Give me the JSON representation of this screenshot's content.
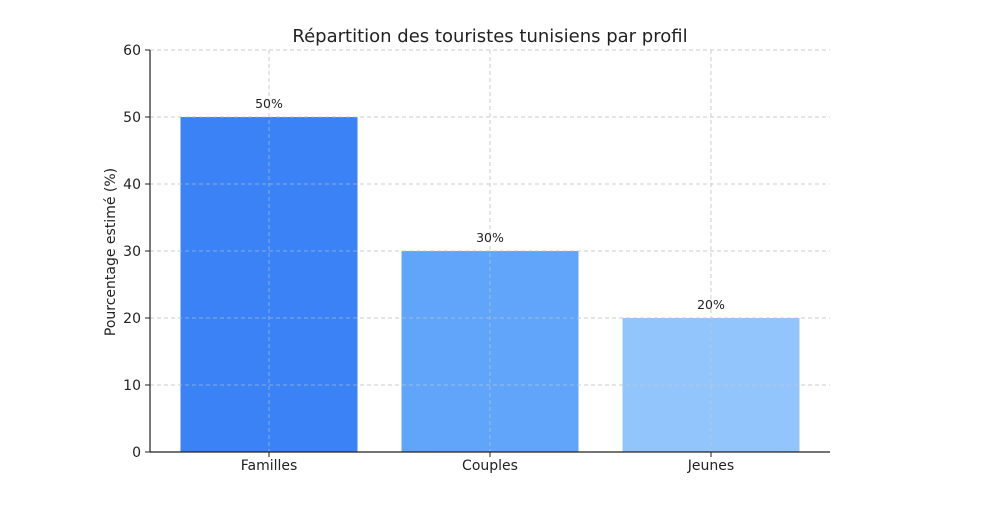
{
  "chart_data": {
    "type": "bar",
    "title": "Répartition des touristes tunisiens par profil",
    "xlabel": "",
    "ylabel": "Pourcentage estimé (%)",
    "categories": [
      "Familles",
      "Couples",
      "Jeunes"
    ],
    "values": [
      50,
      30,
      20
    ],
    "value_labels": [
      "50%",
      "30%",
      "20%"
    ],
    "ylim": [
      0,
      60
    ],
    "yticks": [
      0,
      10,
      20,
      30,
      40,
      50,
      60
    ],
    "ytick_labels": [
      "0",
      "10",
      "20",
      "30",
      "40",
      "50",
      "60"
    ],
    "grid": true,
    "legend": "none",
    "colors": [
      "#3b82f6",
      "#60a5fa",
      "#93c5fd"
    ],
    "grid_color": "#cccccc",
    "axis_color": "#222222"
  }
}
